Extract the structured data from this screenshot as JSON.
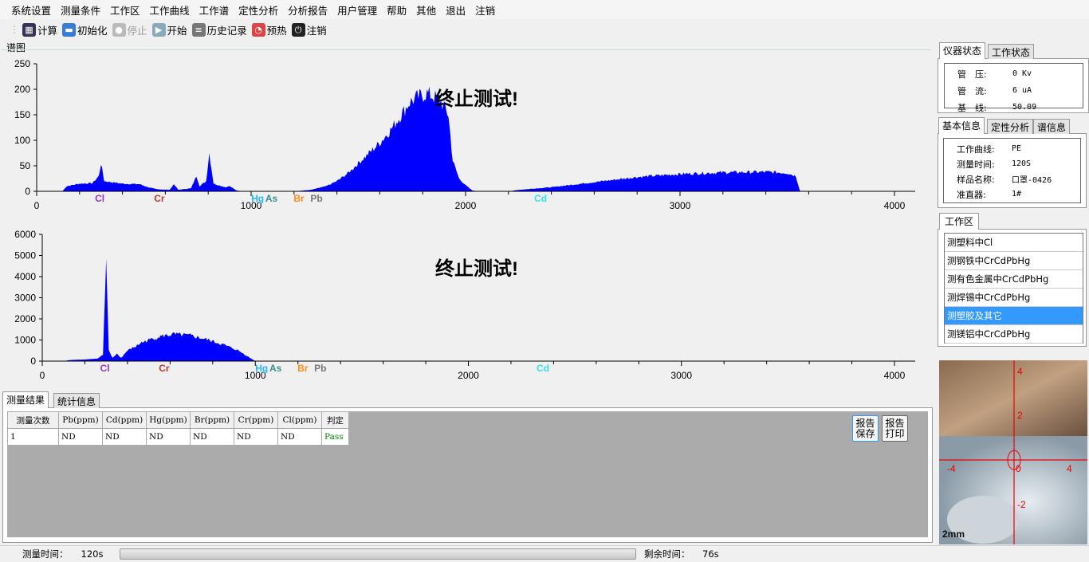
{
  "menu": [
    "系统设置",
    "测量条件",
    "工作区",
    "工作曲线",
    "工作谱",
    "定性分析",
    "分析报告",
    "用户管理",
    "帮助",
    "其他",
    "退出",
    "注销"
  ],
  "toolbar": [
    {
      "label": "计算",
      "icon": "calculator-icon",
      "color": "#335"
    },
    {
      "label": "初始化",
      "icon": "folder-icon",
      "color": "#3a7bd5"
    },
    {
      "label": "停止",
      "icon": "stop-icon",
      "color": "#bbb",
      "disabled": true
    },
    {
      "label": "开始",
      "icon": "play-icon",
      "color": "#8ab"
    },
    {
      "label": "历史记录",
      "icon": "database-icon",
      "color": "#777"
    },
    {
      "label": "预热",
      "icon": "gauge-icon",
      "color": "#d44"
    },
    {
      "label": "注销",
      "icon": "power-icon",
      "color": "#222"
    }
  ],
  "spectrum_group_label": "谱图",
  "chart_data": [
    {
      "type": "area",
      "overlay_text": "终止测试!",
      "xlim": [
        0,
        4100
      ],
      "ylim": [
        0,
        250
      ],
      "xticks": [
        0,
        1000,
        2000,
        3000,
        4000
      ],
      "yticks": [
        0,
        50,
        100,
        150,
        200,
        250
      ],
      "color": "#0000ff",
      "points": [
        [
          120,
          0
        ],
        [
          140,
          10
        ],
        [
          200,
          15
        ],
        [
          260,
          16
        ],
        [
          290,
          30
        ],
        [
          300,
          55
        ],
        [
          315,
          20
        ],
        [
          400,
          15
        ],
        [
          480,
          14
        ],
        [
          520,
          8
        ],
        [
          560,
          4
        ],
        [
          620,
          3
        ],
        [
          640,
          14
        ],
        [
          660,
          3
        ],
        [
          720,
          6
        ],
        [
          745,
          30
        ],
        [
          760,
          10
        ],
        [
          790,
          20
        ],
        [
          805,
          75
        ],
        [
          825,
          15
        ],
        [
          880,
          8
        ],
        [
          900,
          10
        ],
        [
          930,
          2
        ],
        [
          960,
          0
        ],
        [
          1200,
          0
        ],
        [
          1280,
          3
        ],
        [
          1350,
          10
        ],
        [
          1400,
          20
        ],
        [
          1450,
          35
        ],
        [
          1500,
          55
        ],
        [
          1550,
          75
        ],
        [
          1600,
          95
        ],
        [
          1650,
          120
        ],
        [
          1700,
          150
        ],
        [
          1740,
          175
        ],
        [
          1780,
          185
        ],
        [
          1820,
          192
        ],
        [
          1880,
          180
        ],
        [
          1920,
          150
        ],
        [
          1940,
          60
        ],
        [
          1970,
          25
        ],
        [
          2000,
          12
        ],
        [
          2030,
          2
        ],
        [
          2060,
          0
        ],
        [
          2200,
          0
        ],
        [
          2250,
          3
        ],
        [
          2400,
          8
        ],
        [
          2600,
          18
        ],
        [
          2800,
          28
        ],
        [
          3000,
          34
        ],
        [
          3200,
          37
        ],
        [
          3400,
          38
        ],
        [
          3500,
          36
        ],
        [
          3540,
          30
        ],
        [
          3560,
          0
        ],
        [
          4100,
          0
        ]
      ],
      "markers": [
        {
          "label": "Cl",
          "x": 294,
          "color": "#9932cc"
        },
        {
          "label": "Cr",
          "x": 572,
          "color": "#c0392b"
        },
        {
          "label": "Hg",
          "x": 1030,
          "color": "#29b6f6"
        },
        {
          "label": "As",
          "x": 1095,
          "color": "#3a8f8f"
        },
        {
          "label": "Br",
          "x": 1223,
          "color": "#ff8c1a"
        },
        {
          "label": "Pb",
          "x": 1305,
          "color": "#777777"
        },
        {
          "label": "Cd",
          "x": 2350,
          "color": "#33e0f0"
        }
      ]
    },
    {
      "type": "area",
      "overlay_text": "终止测试!",
      "xlim": [
        0,
        4100
      ],
      "ylim": [
        0,
        6000
      ],
      "xticks": [
        0,
        1000,
        2000,
        3000,
        4000
      ],
      "yticks": [
        0,
        1000,
        2000,
        3000,
        4000,
        5000,
        6000
      ],
      "color": "#0000ff",
      "points": [
        [
          100,
          0
        ],
        [
          130,
          50
        ],
        [
          200,
          80
        ],
        [
          260,
          120
        ],
        [
          285,
          300
        ],
        [
          300,
          4600
        ],
        [
          312,
          500
        ],
        [
          330,
          150
        ],
        [
          350,
          350
        ],
        [
          370,
          150
        ],
        [
          400,
          500
        ],
        [
          440,
          700
        ],
        [
          460,
          850
        ],
        [
          500,
          1000
        ],
        [
          560,
          1180
        ],
        [
          620,
          1270
        ],
        [
          700,
          1200
        ],
        [
          780,
          1000
        ],
        [
          850,
          780
        ],
        [
          920,
          500
        ],
        [
          960,
          250
        ],
        [
          1000,
          0
        ],
        [
          4100,
          0
        ]
      ],
      "markers": [
        {
          "label": "Cl",
          "x": 294,
          "color": "#9932cc"
        },
        {
          "label": "Cr",
          "x": 572,
          "color": "#c0392b"
        },
        {
          "label": "Hg",
          "x": 1030,
          "color": "#29b6f6"
        },
        {
          "label": "As",
          "x": 1095,
          "color": "#3a8f8f"
        },
        {
          "label": "Br",
          "x": 1223,
          "color": "#ff8c1a"
        },
        {
          "label": "Pb",
          "x": 1305,
          "color": "#777777"
        },
        {
          "label": "Cd",
          "x": 2350,
          "color": "#33e0f0"
        }
      ]
    }
  ],
  "results": {
    "tabs": [
      "测量结果",
      "统计信息"
    ],
    "columns": [
      "测量次数",
      "Pb(ppm)",
      "Cd(ppm)",
      "Hg(ppm)",
      "Br(ppm)",
      "Cr(ppm)",
      "Cl(ppm)",
      "判定"
    ],
    "rows": [
      [
        "1",
        "ND",
        "ND",
        "ND",
        "ND",
        "ND",
        "ND",
        "Pass"
      ]
    ],
    "pass_color": "#008000",
    "save_btn": "报告保存",
    "print_btn": "报告打印"
  },
  "instrument": {
    "tabs": [
      "仪器状态",
      "工作状态"
    ],
    "rows": [
      [
        "管　压:",
        "0 Kv"
      ],
      [
        "管　流:",
        "6 uA"
      ],
      [
        "基　线:",
        "50.09"
      ]
    ]
  },
  "basic": {
    "tabs": [
      "基本信息",
      "定性分析",
      "谱信息"
    ],
    "rows": [
      [
        "工作曲线:",
        "PE"
      ],
      [
        "测量时间:",
        "120S"
      ],
      [
        "样品名称:",
        "口罩-0426"
      ],
      [
        "准直器:",
        "1#"
      ]
    ]
  },
  "workspace": {
    "tab": "工作区",
    "items": [
      "测塑料中Cl",
      "测钢铁中CrCdPbHg",
      "测有色金属中CrCdPbHg",
      "测焊锡中CrCdPbHg",
      "测塑胶及其它",
      "测镁铝中CrCdPbHg"
    ],
    "selected": 4
  },
  "camera": {
    "scale_label": "2mm",
    "axis_labels": [
      "4",
      "2",
      "0",
      "-2",
      "-4"
    ]
  },
  "status": {
    "measure_label": "测量时间：",
    "measure_value": "120s",
    "remain_label": "剩余时间：",
    "remain_value": "76s"
  }
}
